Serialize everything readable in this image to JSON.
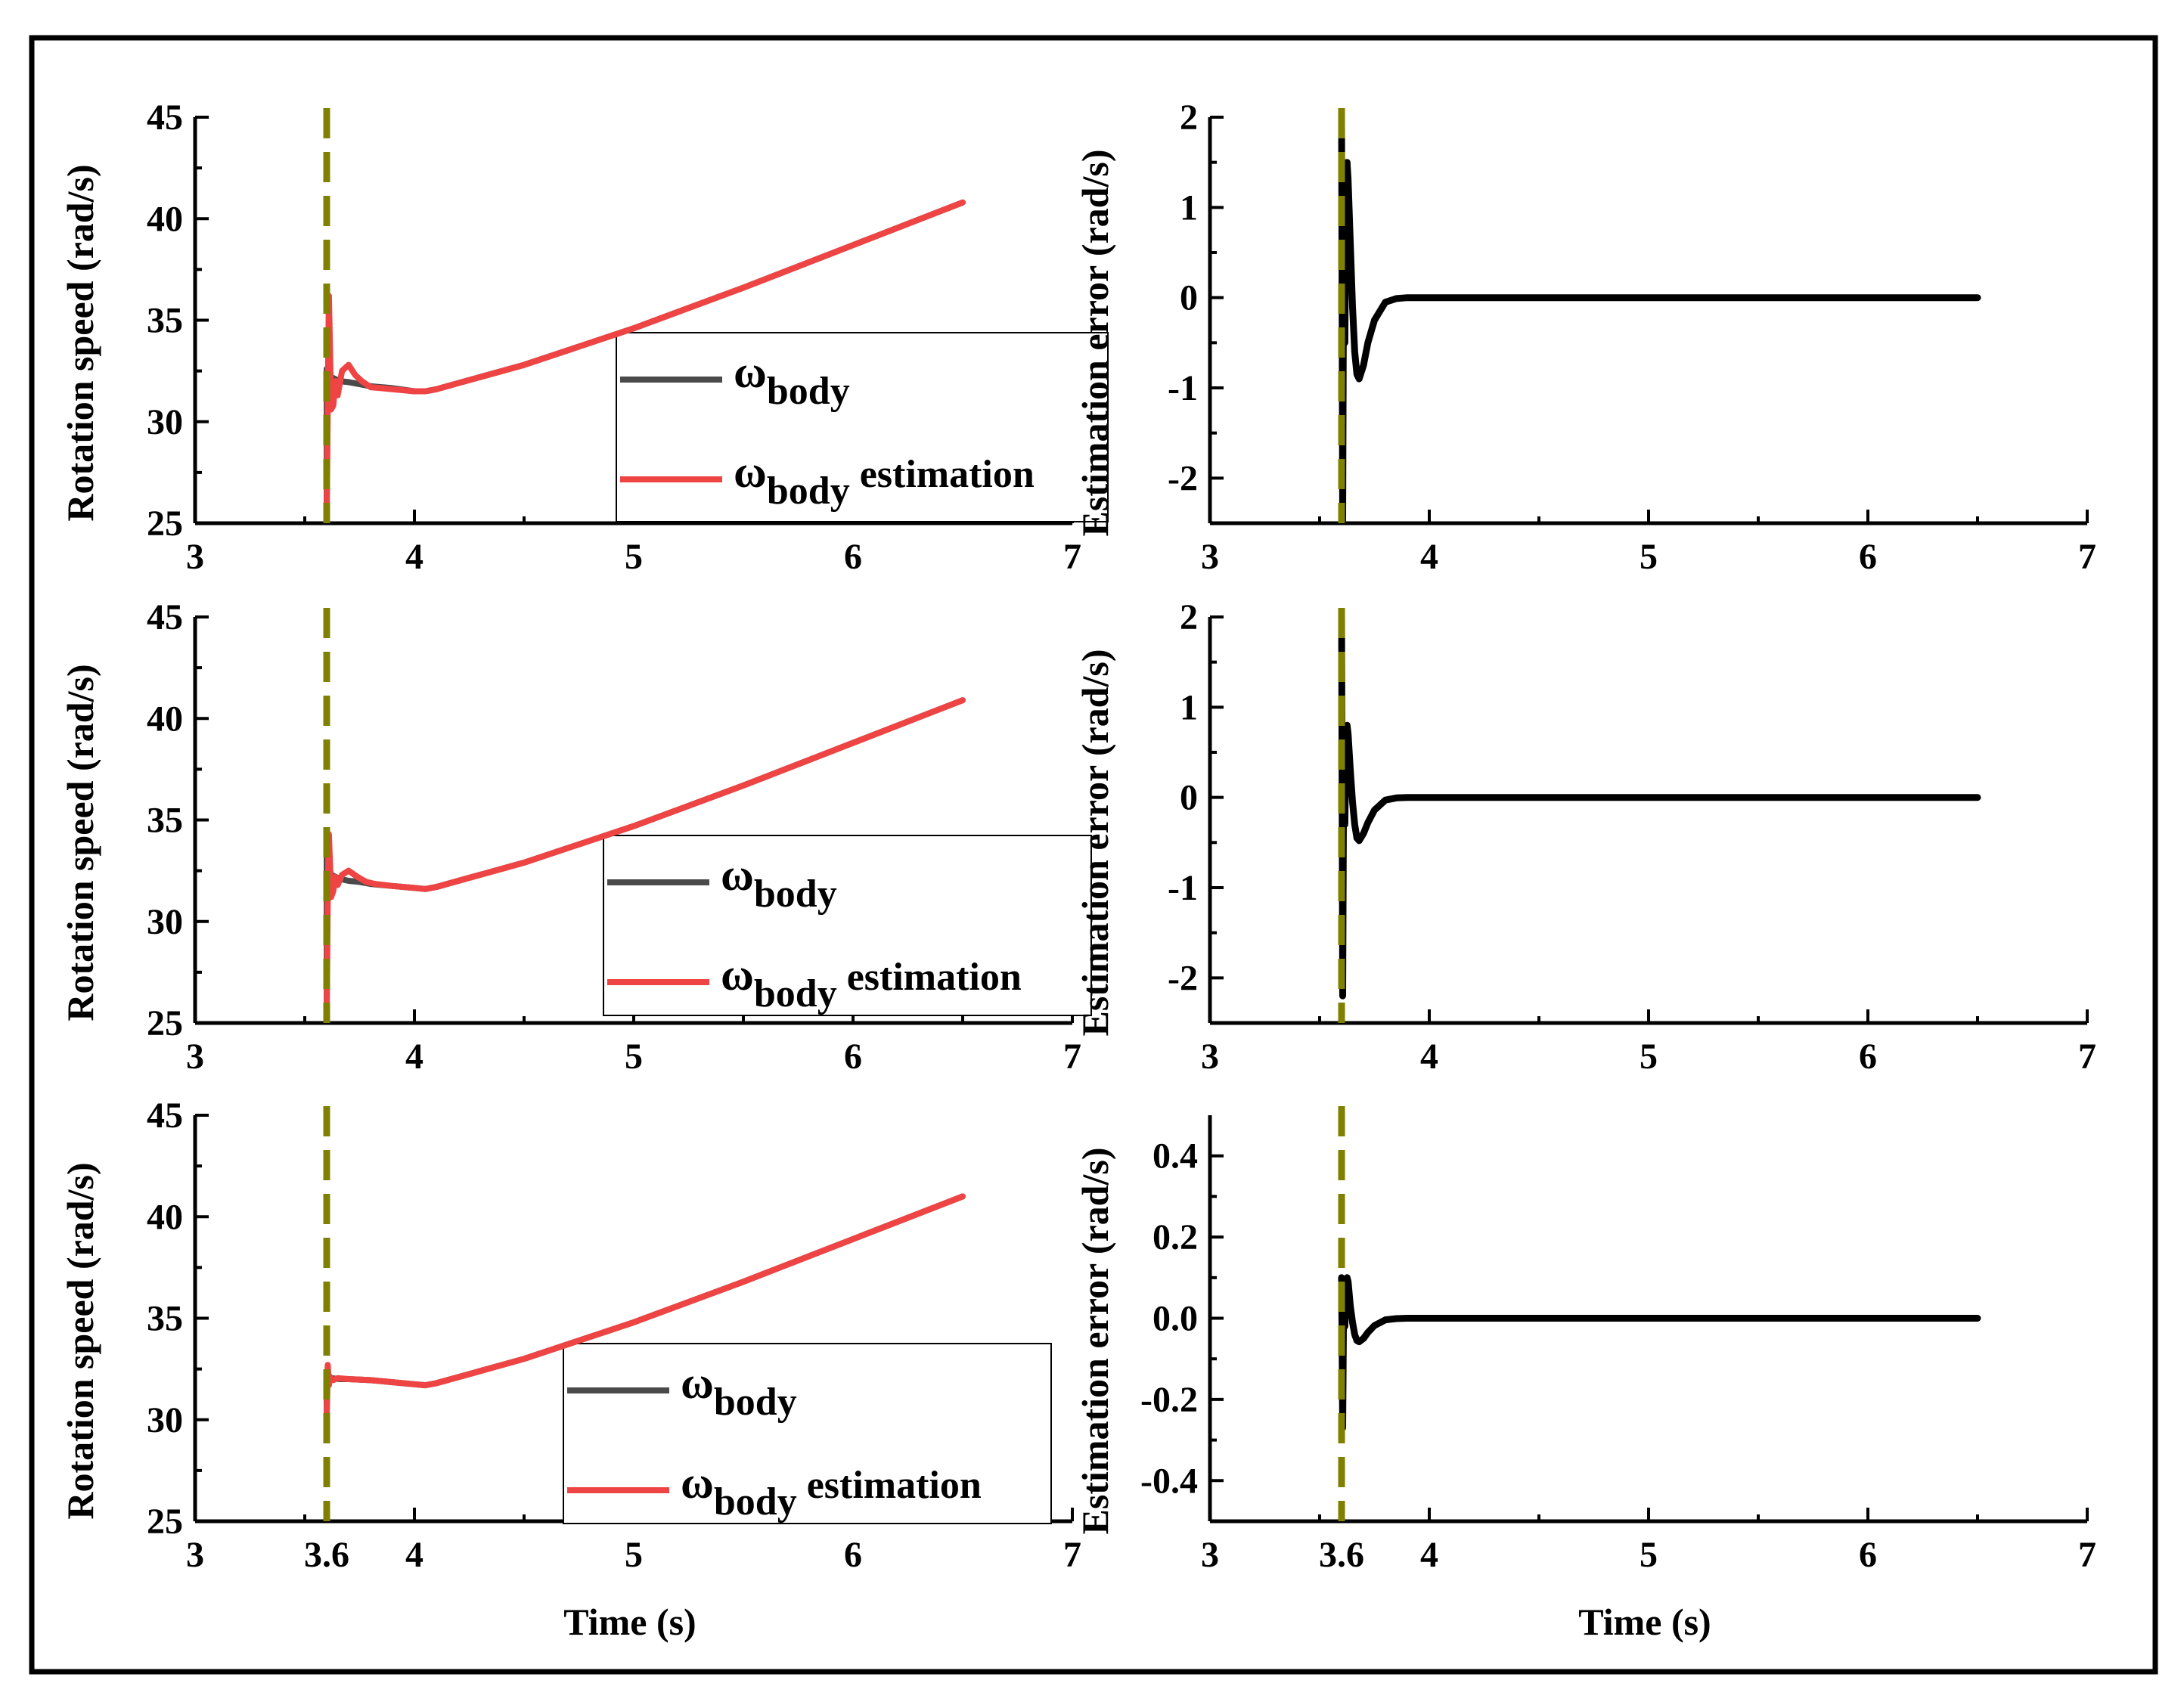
{
  "colors": {
    "actual": "#4a4a4a",
    "estimation": "#ef4444",
    "error": "#000000",
    "marker": "#808000",
    "frame": "#000000"
  },
  "xlabel": "Time (s)",
  "chart_data": [
    {
      "id": "speed-1",
      "type": "line",
      "ylabel": "Rotation speed (rad/s)",
      "xlim": [
        3,
        7
      ],
      "ylim": [
        25,
        45
      ],
      "xticks": [
        3,
        4,
        5,
        6,
        7
      ],
      "xtick_labels": [
        "3",
        "4",
        "5",
        "6",
        "7"
      ],
      "yticks": [
        25,
        30,
        35,
        40,
        45
      ],
      "ytick_labels": [
        "25",
        "30",
        "35",
        "40",
        "45"
      ],
      "xlabel_shown": false,
      "vline_x": 3.6,
      "legend": {
        "position": "center-right",
        "items": [
          {
            "symbol": "ω",
            "sub": "body",
            "suffix": ""
          },
          {
            "symbol": "ω",
            "sub": "body",
            "suffix": " estimation"
          }
        ]
      },
      "series": [
        {
          "name": "ωbody",
          "role": "actual",
          "x": [
            3.6,
            3.6,
            3.62,
            3.66,
            3.7,
            3.75,
            3.8,
            3.9,
            4.0,
            4.05,
            4.1,
            4.2,
            4.5,
            5.0,
            5.5,
            6.0,
            6.5
          ],
          "y": [
            25,
            32.6,
            32.2,
            32.0,
            31.95,
            31.85,
            31.75,
            31.65,
            31.5,
            31.5,
            31.6,
            31.9,
            32.8,
            34.6,
            36.6,
            38.7,
            40.8
          ]
        },
        {
          "name": "ωbody estimation",
          "role": "estimation",
          "x": [
            3.6,
            3.605,
            3.61,
            3.615,
            3.62,
            3.63,
            3.64,
            3.65,
            3.67,
            3.7,
            3.73,
            3.76,
            3.8,
            3.85,
            3.9,
            4.0,
            4.05,
            4.1,
            4.2,
            4.5,
            5.0,
            5.5,
            6.0,
            6.5
          ],
          "y": [
            25,
            31.0,
            36.2,
            33.5,
            30.6,
            30.8,
            32.0,
            31.3,
            32.5,
            32.8,
            32.3,
            32.0,
            31.7,
            31.65,
            31.6,
            31.5,
            31.5,
            31.6,
            31.9,
            32.8,
            34.6,
            36.6,
            38.7,
            40.8
          ]
        }
      ]
    },
    {
      "id": "error-1",
      "type": "line",
      "ylabel": "Estimation error (rad/s)",
      "xlim": [
        3,
        7
      ],
      "ylim": [
        -2.5,
        2
      ],
      "xticks": [
        3,
        4,
        5,
        6,
        7
      ],
      "xtick_labels": [
        "3",
        "4",
        "5",
        "6",
        "7"
      ],
      "yticks": [
        -2,
        -1,
        0,
        1,
        2
      ],
      "ytick_labels": [
        "-2",
        "-1",
        "0",
        "1",
        "2"
      ],
      "xlabel_shown": false,
      "vline_x": 3.6,
      "series": [
        {
          "name": "Estimation error",
          "role": "error",
          "x": [
            3.6,
            3.605,
            3.61,
            3.615,
            3.62,
            3.625,
            3.63,
            3.64,
            3.65,
            3.66,
            3.67,
            3.68,
            3.7,
            3.72,
            3.75,
            3.8,
            3.85,
            3.9,
            4.0,
            5.0,
            6.0,
            6.5
          ],
          "y": [
            2.0,
            -2.5,
            1.0,
            -0.5,
            1.2,
            1.5,
            1.3,
            0.6,
            -0.1,
            -0.6,
            -0.85,
            -0.9,
            -0.75,
            -0.5,
            -0.25,
            -0.05,
            -0.01,
            0,
            0,
            0,
            0,
            0
          ]
        }
      ]
    },
    {
      "id": "speed-2",
      "type": "line",
      "ylabel": "Rotation speed (rad/s)",
      "xlim": [
        3,
        7
      ],
      "ylim": [
        25,
        45
      ],
      "xticks": [
        3,
        4,
        5,
        6,
        7
      ],
      "xtick_labels": [
        "3",
        "4",
        "5",
        "6",
        "7"
      ],
      "yticks": [
        25,
        30,
        35,
        40,
        45
      ],
      "ytick_labels": [
        "25",
        "30",
        "35",
        "40",
        "45"
      ],
      "xlabel_shown": false,
      "vline_x": 3.6,
      "legend": {
        "position": "center-right",
        "items": [
          {
            "symbol": "ω",
            "sub": "body",
            "suffix": ""
          },
          {
            "symbol": "ω",
            "sub": "body",
            "suffix": " estimation"
          }
        ]
      },
      "series": [
        {
          "name": "ωbody",
          "role": "actual",
          "x": [
            3.6,
            3.6,
            3.62,
            3.66,
            3.7,
            3.75,
            3.8,
            3.9,
            4.0,
            4.05,
            4.1,
            4.2,
            4.5,
            5.0,
            5.5,
            6.0,
            6.5
          ],
          "y": [
            25,
            33.2,
            32.3,
            32.1,
            32.0,
            31.95,
            31.85,
            31.75,
            31.65,
            31.6,
            31.7,
            32.0,
            32.9,
            34.7,
            36.7,
            38.8,
            40.9
          ]
        },
        {
          "name": "ωbody estimation",
          "role": "estimation",
          "x": [
            3.6,
            3.605,
            3.61,
            3.615,
            3.62,
            3.63,
            3.64,
            3.65,
            3.67,
            3.7,
            3.74,
            3.78,
            3.82,
            3.9,
            4.0,
            4.05,
            4.1,
            4.2,
            4.5,
            5.0,
            5.5,
            6.0,
            6.5
          ],
          "y": [
            25,
            31.5,
            34.3,
            32.8,
            31.2,
            31.5,
            32.2,
            31.8,
            32.3,
            32.5,
            32.2,
            31.95,
            31.85,
            31.75,
            31.65,
            31.6,
            31.7,
            32.0,
            32.9,
            34.7,
            36.7,
            38.8,
            40.9
          ]
        }
      ]
    },
    {
      "id": "error-2",
      "type": "line",
      "ylabel": "Estimation error (rad/s)",
      "xlim": [
        3,
        7
      ],
      "ylim": [
        -2.5,
        2
      ],
      "xticks": [
        3,
        4,
        5,
        6,
        7
      ],
      "xtick_labels": [
        "3",
        "4",
        "5",
        "6",
        "7"
      ],
      "yticks": [
        -2,
        -1,
        0,
        1,
        2
      ],
      "ytick_labels": [
        "-2",
        "-1",
        "0",
        "1",
        "2"
      ],
      "xlabel_shown": false,
      "vline_x": 3.6,
      "series": [
        {
          "name": "Estimation error",
          "role": "error",
          "x": [
            3.6,
            3.605,
            3.61,
            3.615,
            3.62,
            3.625,
            3.63,
            3.64,
            3.65,
            3.66,
            3.67,
            3.68,
            3.7,
            3.72,
            3.75,
            3.8,
            3.85,
            3.9,
            4.0,
            5.0,
            6.0,
            6.5
          ],
          "y": [
            2.1,
            -2.2,
            0.6,
            -0.3,
            0.6,
            0.8,
            0.7,
            0.3,
            -0.05,
            -0.3,
            -0.45,
            -0.48,
            -0.4,
            -0.28,
            -0.14,
            -0.03,
            -0.005,
            0,
            0,
            0,
            0,
            0
          ]
        }
      ]
    },
    {
      "id": "speed-3",
      "type": "line",
      "ylabel": "Rotation speed (rad/s)",
      "xlim": [
        3,
        7
      ],
      "ylim": [
        25,
        45
      ],
      "xticks": [
        3,
        3.6,
        4,
        5,
        6,
        7
      ],
      "xtick_labels": [
        "3",
        "3.6",
        "4",
        "5",
        "6",
        "7"
      ],
      "yticks": [
        25,
        30,
        35,
        40,
        45
      ],
      "ytick_labels": [
        "25",
        "30",
        "35",
        "40",
        "45"
      ],
      "xlabel_shown": true,
      "vline_x": 3.6,
      "legend": {
        "position": "bottom-right",
        "items": [
          {
            "symbol": "ω",
            "sub": "body",
            "suffix": ""
          },
          {
            "symbol": "ω",
            "sub": "body",
            "suffix": " estimation"
          }
        ]
      },
      "series": [
        {
          "name": "ωbody",
          "role": "actual",
          "x": [
            3.6,
            3.6,
            3.62,
            3.66,
            3.7,
            3.8,
            3.9,
            4.0,
            4.05,
            4.1,
            4.2,
            4.5,
            5.0,
            5.5,
            6.0,
            6.5
          ],
          "y": [
            30,
            32.3,
            32.05,
            32.0,
            32.0,
            31.95,
            31.85,
            31.75,
            31.7,
            31.8,
            32.1,
            33.0,
            34.8,
            36.8,
            38.9,
            41.0
          ]
        },
        {
          "name": "ωbody estimation",
          "role": "estimation",
          "x": [
            3.6,
            3.605,
            3.61,
            3.615,
            3.62,
            3.63,
            3.65,
            3.7,
            3.8,
            3.9,
            4.0,
            4.05,
            4.1,
            4.2,
            4.5,
            5.0,
            5.5,
            6.0,
            6.5
          ],
          "y": [
            30,
            32.7,
            31.7,
            32.1,
            32.0,
            31.95,
            32.05,
            32.0,
            31.95,
            31.85,
            31.75,
            31.7,
            31.8,
            32.1,
            33.0,
            34.8,
            36.8,
            38.9,
            41.0
          ]
        }
      ]
    },
    {
      "id": "error-3",
      "type": "line",
      "ylabel": "Estimation error (rad/s)",
      "xlim": [
        3,
        7
      ],
      "ylim": [
        -0.5,
        0.5
      ],
      "xticks": [
        3,
        3.6,
        4,
        5,
        6,
        7
      ],
      "xtick_labels": [
        "3",
        "3.6",
        "4",
        "5",
        "6",
        "7"
      ],
      "yticks": [
        -0.4,
        -0.2,
        0.0,
        0.2,
        0.4
      ],
      "ytick_labels": [
        "-0.4",
        "-0.2",
        "0.0",
        "0.2",
        "0.4"
      ],
      "xlabel_shown": true,
      "vline_x": 3.6,
      "series": [
        {
          "name": "Estimation error",
          "role": "error",
          "x": [
            3.6,
            3.605,
            3.61,
            3.615,
            3.62,
            3.625,
            3.63,
            3.64,
            3.65,
            3.66,
            3.67,
            3.68,
            3.7,
            3.72,
            3.75,
            3.8,
            3.85,
            3.9,
            4.0,
            5.0,
            6.0,
            6.5
          ],
          "y": [
            0.1,
            -0.27,
            0.08,
            -0.02,
            0.08,
            0.1,
            0.09,
            0.03,
            -0.01,
            -0.04,
            -0.055,
            -0.058,
            -0.05,
            -0.035,
            -0.018,
            -0.004,
            -0.001,
            0,
            0,
            0,
            0,
            0
          ]
        }
      ]
    }
  ]
}
